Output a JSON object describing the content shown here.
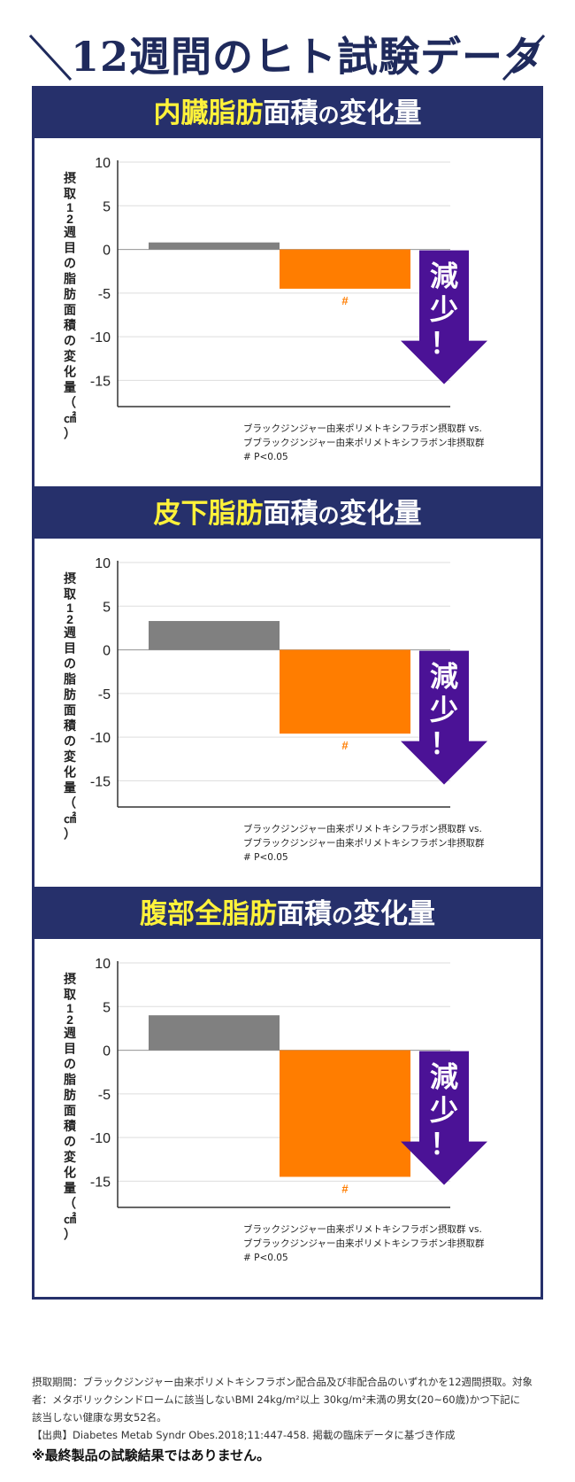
{
  "page_title": "12週間のヒト試験データ",
  "colors": {
    "navy": "#26306b",
    "title_highlight": "#fff23a",
    "placebo_bar": "#808080",
    "active_bar": "#ff7d00",
    "arrow": "#4b1296",
    "axis": "#333333",
    "grid": "#dddddd"
  },
  "chart_data": [
    {
      "type": "bar",
      "title": "内臓脂肪面積の変化量",
      "title_highlight": "内臓脂肪",
      "title_rest": "面積",
      "title_no": "の",
      "title_end": "変化量",
      "ylabel": "摂取12週目の脂肪面積の変化量（㎠）",
      "ylim": [
        -18,
        10
      ],
      "yticks": [
        10,
        5,
        0,
        -5,
        -10,
        -15
      ],
      "series": [
        {
          "group": "placebo",
          "value": 0.8
        },
        {
          "group": "active",
          "value": -4.5
        }
      ],
      "significance_label": "#",
      "callout_text": "減少！",
      "legend": [
        "ブラックジンジャー由来ポリメトキシフラボン摂取群 vs.",
        "ブブラックジンジャー由来ポリメトキシフラボン非摂取群",
        "# P<0.05"
      ]
    },
    {
      "type": "bar",
      "title": "皮下脂肪面積の変化量",
      "title_highlight": "皮下脂肪",
      "title_rest": "面積",
      "title_no": "の",
      "title_end": "変化量",
      "ylabel": "摂取12週目の脂肪面積の変化量（㎠）",
      "ylim": [
        -18,
        10
      ],
      "yticks": [
        10,
        5,
        0,
        -5,
        -10,
        -15
      ],
      "series": [
        {
          "group": "placebo",
          "value": 3.3
        },
        {
          "group": "active",
          "value": -9.6
        }
      ],
      "significance_label": "#",
      "callout_text": "減少！",
      "legend": [
        "ブラックジンジャー由来ポリメトキシフラボン摂取群 vs.",
        "ブブラックジンジャー由来ポリメトキシフラボン非摂取群",
        "# P<0.05"
      ]
    },
    {
      "type": "bar",
      "title": "腹部全脂肪面積の変化量",
      "title_highlight": "腹部全脂肪",
      "title_rest": "面積",
      "title_no": "の",
      "title_end": "変化量",
      "ylabel": "摂取12週目の脂肪面積の変化量（㎠）",
      "ylim": [
        -18,
        10
      ],
      "yticks": [
        10,
        5,
        0,
        -5,
        -10,
        -15
      ],
      "series": [
        {
          "group": "placebo",
          "value": 4.0
        },
        {
          "group": "active",
          "value": -14.5
        }
      ],
      "significance_label": "#",
      "callout_text": "減少！",
      "legend": [
        "ブラックジンジャー由来ポリメトキシフラボン摂取群 vs.",
        "ブブラックジンジャー由来ポリメトキシフラボン非摂取群",
        "# P<0.05"
      ]
    }
  ],
  "footnote": {
    "line1": "摂取期間：ブラックジンジャー由来ポリメトキシフラボン配合品及び非配合品のいずれかを12週間摂取。対象",
    "line2": "者：メタボリックシンドロームに該当しないBMI 24kg/m²以上 30kg/m²未満の男女(20~60歳)かつ下記に",
    "line3": "該当しない健康な男女52名。",
    "source": "【出典】Diabetes Metab Syndr Obes.2018;11:447-458. 掲載の臨床データに基づき作成",
    "disclaimer": "※最終製品の試験結果ではありません。"
  }
}
